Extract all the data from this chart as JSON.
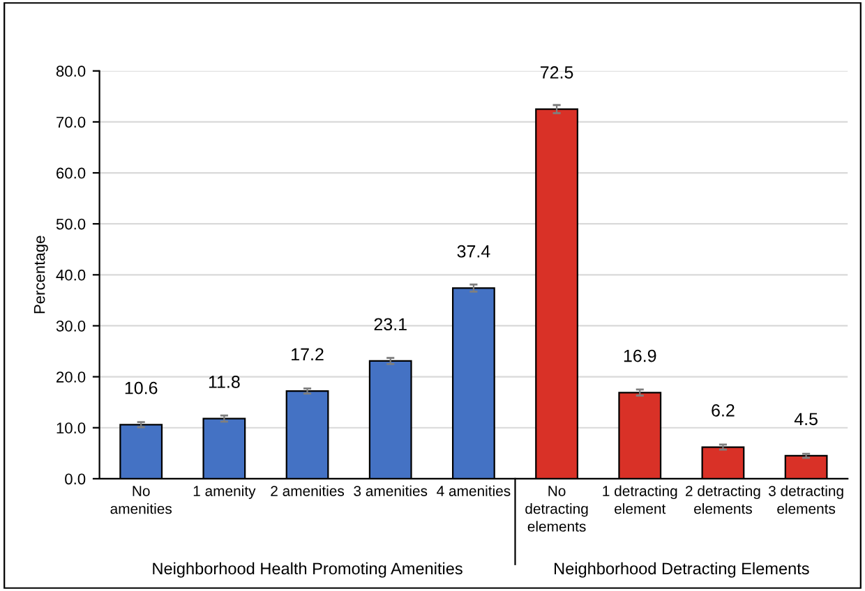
{
  "chart_data": {
    "type": "bar",
    "ylabel": "Percentage",
    "categories": [
      "No\namenities",
      "1 amenity",
      "2 amenities",
      "3 amenities",
      "4 amenities",
      "No\ndetracting\nelements",
      "1 detracting\nelement",
      "2 detracting\nelements",
      "3 detracting\nelements"
    ],
    "values": [
      10.6,
      11.8,
      17.2,
      23.1,
      37.4,
      72.5,
      16.9,
      6.2,
      4.5
    ],
    "colors": [
      "#4472c4",
      "#4472c4",
      "#4472c4",
      "#4472c4",
      "#4472c4",
      "#d93127",
      "#d93127",
      "#d93127",
      "#d93127"
    ],
    "errors": [
      0.5,
      0.6,
      0.5,
      0.6,
      0.7,
      0.8,
      0.6,
      0.5,
      0.4
    ],
    "data_labels": true,
    "ylim": [
      0,
      80
    ],
    "yticks": [
      {
        "value": 0,
        "label": "0.0"
      },
      {
        "value": 10,
        "label": "10.0"
      },
      {
        "value": 20,
        "label": "20.0"
      },
      {
        "value": 30,
        "label": "30.0"
      },
      {
        "value": 40,
        "label": "40.0"
      },
      {
        "value": 50,
        "label": "50.0"
      },
      {
        "value": 60,
        "label": "60.0"
      },
      {
        "value": 70,
        "label": "70.0"
      },
      {
        "value": 80,
        "label": "80.0"
      }
    ],
    "grid": "y",
    "annotations": [
      "Neighborhood Health Promoting Amenities",
      "Neighborhood Detracting Elements"
    ]
  }
}
